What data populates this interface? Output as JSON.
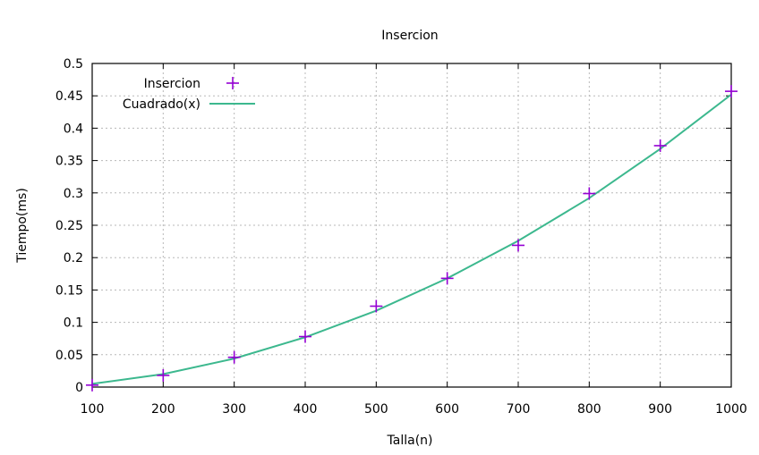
{
  "chart_data": {
    "type": "line",
    "title": "Insercion",
    "xlabel": "Talla(n)",
    "ylabel": "Tiempo(ms)",
    "xlim": [
      100,
      1000
    ],
    "ylim": [
      0,
      0.5
    ],
    "x_ticks": [
      100,
      200,
      300,
      400,
      500,
      600,
      700,
      800,
      900,
      1000
    ],
    "y_ticks": [
      0,
      0.05,
      0.1,
      0.15,
      0.2,
      0.25,
      0.3,
      0.35,
      0.4,
      0.45,
      0.5
    ],
    "x_tick_labels": [
      "100",
      "200",
      "300",
      "400",
      "500",
      "600",
      "700",
      "800",
      "900",
      "1000"
    ],
    "y_tick_labels": [
      "0",
      "0.05",
      "0.1",
      "0.15",
      "0.2",
      "0.25",
      "0.3",
      "0.35",
      "0.4",
      "0.45",
      "0.5"
    ],
    "grid": true,
    "legend_position": "top-left",
    "series": [
      {
        "name": "Insercion",
        "kind": "points",
        "marker": "plus",
        "color": "#9400d3",
        "x": [
          100,
          200,
          300,
          400,
          500,
          600,
          700,
          800,
          900,
          1000
        ],
        "y": [
          0.003,
          0.018,
          0.046,
          0.078,
          0.125,
          0.168,
          0.219,
          0.299,
          0.373,
          0.457
        ]
      },
      {
        "name": "Cuadrado(x)",
        "kind": "line",
        "color": "#3cb88e",
        "x": [
          100,
          200,
          300,
          400,
          500,
          600,
          700,
          800,
          900,
          1000
        ],
        "y": [
          0.005,
          0.02,
          0.044,
          0.077,
          0.118,
          0.168,
          0.226,
          0.292,
          0.368,
          0.452
        ]
      }
    ]
  }
}
